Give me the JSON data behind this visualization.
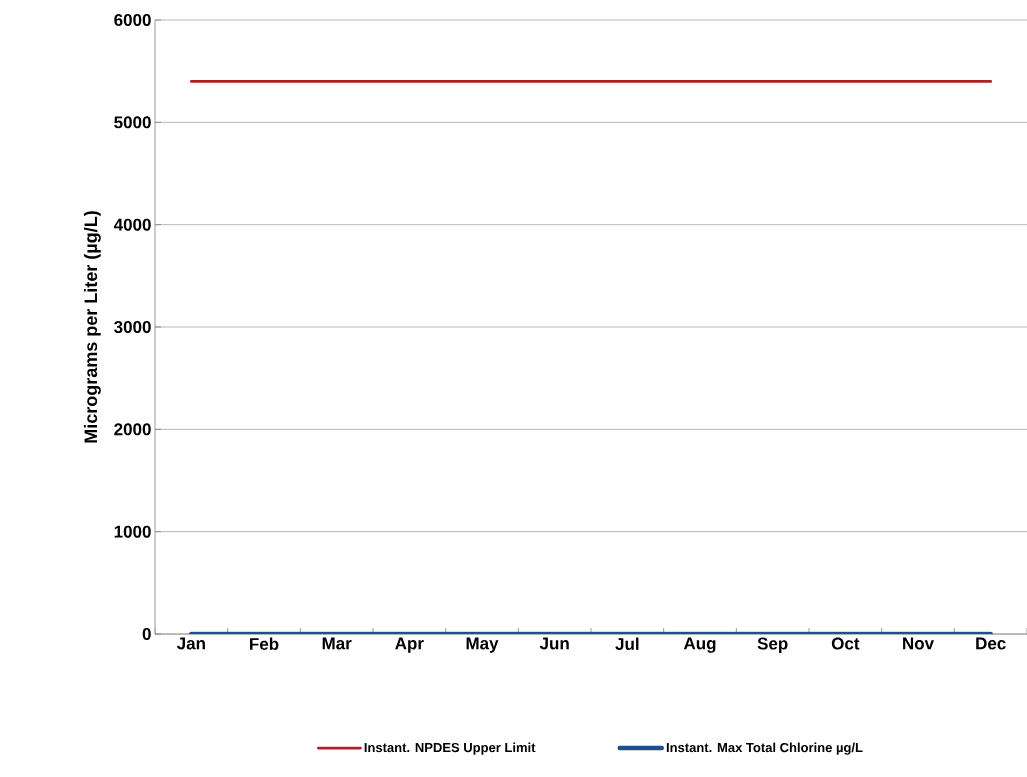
{
  "chart_data": {
    "type": "line",
    "ylabel": "Micrograms per Liter (µg/L)",
    "categories": [
      "Jan",
      "Feb",
      "Mar",
      "Apr",
      "May",
      "Jun",
      "Jul",
      "Aug",
      "Sep",
      "Oct",
      "Nov",
      "Dec"
    ],
    "series": [
      {
        "name": "Instant. NPDES  Upper Limit",
        "color": "#b01f24",
        "values": [
          5400,
          5400,
          5400,
          5400,
          5400,
          5400,
          5400,
          5400,
          5400,
          5400,
          5400,
          5400
        ]
      },
      {
        "name": "Instant. Max Total Chlorine µg/L",
        "color": "#1f4e8c",
        "values": [
          0,
          0,
          0,
          0,
          0,
          0,
          0,
          0,
          0,
          0,
          0,
          0
        ]
      }
    ],
    "ylim": [
      0,
      6000
    ],
    "yticks": [
      0,
      1000,
      2000,
      3000,
      4000,
      5000,
      6000
    ],
    "grid": "y",
    "legend": "bottom",
    "marker": "none"
  }
}
